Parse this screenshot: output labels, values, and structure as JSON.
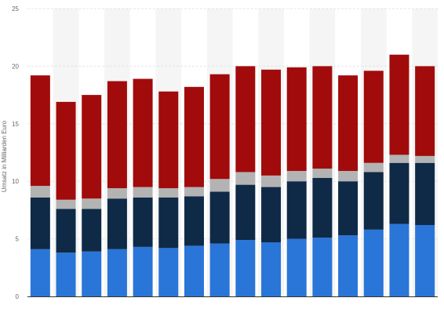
{
  "chart_data": {
    "type": "bar",
    "stacked": true,
    "title": "",
    "xlabel": "",
    "ylabel": "Umsatz in Milliarden Euro",
    "ylim": [
      0,
      25
    ],
    "yticks": [
      0,
      5,
      10,
      15,
      20,
      25
    ],
    "grid": true,
    "legend": "none",
    "categories": [
      "",
      "",
      "",
      "",
      "",
      "",
      "",
      "",
      "",
      "",
      "",
      "",
      "",
      "",
      "",
      ""
    ],
    "series": [
      {
        "color": "#2a75d8",
        "values": [
          4.1,
          3.8,
          3.9,
          4.1,
          4.3,
          4.2,
          4.4,
          4.6,
          4.9,
          4.7,
          5.0,
          5.1,
          5.3,
          5.8,
          6.3,
          6.2
        ]
      },
      {
        "color": "#0e2a47",
        "values": [
          4.5,
          3.8,
          3.7,
          4.4,
          4.3,
          4.4,
          4.3,
          4.5,
          4.8,
          4.8,
          5.0,
          5.2,
          4.7,
          5.0,
          5.3,
          5.4
        ]
      },
      {
        "color": "#b3b3b3",
        "values": [
          1.0,
          0.8,
          0.9,
          0.9,
          0.9,
          0.8,
          0.8,
          1.1,
          1.1,
          1.0,
          0.9,
          0.8,
          0.9,
          0.8,
          0.7,
          0.6
        ]
      },
      {
        "color": "#a20b0b",
        "values": [
          9.6,
          8.5,
          9.0,
          9.3,
          9.4,
          8.4,
          8.7,
          9.1,
          9.2,
          9.2,
          9.0,
          8.9,
          8.3,
          8.0,
          8.7,
          7.8
        ]
      }
    ]
  },
  "style": {
    "band_color": "#f5f5f5",
    "grid_color": "#e4e4e4",
    "axis_color": "#333333"
  }
}
